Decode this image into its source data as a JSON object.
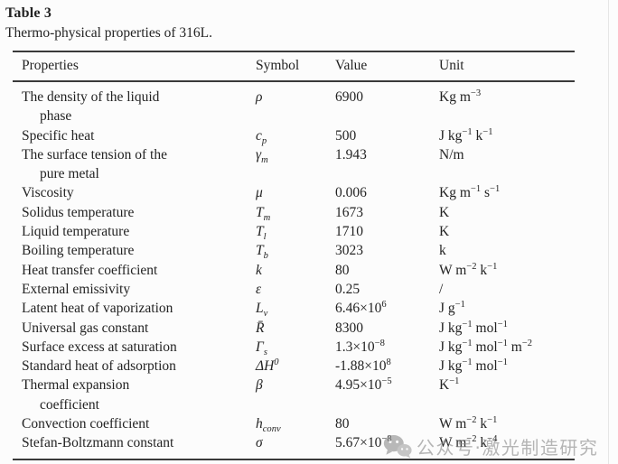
{
  "page": {
    "label": "Table 3",
    "caption": "Thermo-physical properties of 316L."
  },
  "table": {
    "columns": [
      "Properties",
      "Symbol",
      "Value",
      "Unit"
    ],
    "rows": [
      {
        "property_html": "The density of the liquid<br>phase",
        "symbol_html": "ρ",
        "value_html": "6900",
        "unit_html": "Kg m<sup>−3</sup>"
      },
      {
        "property_html": "Specific heat",
        "symbol_html": "c<sub>p</sub>",
        "value_html": "500",
        "unit_html": "J kg<sup>−1</sup> k<sup>−1</sup>"
      },
      {
        "property_html": "The surface tension of the<br>pure metal",
        "symbol_html": "γ<sub>m</sub>",
        "value_html": "1.943",
        "unit_html": "N/m"
      },
      {
        "property_html": "Viscosity",
        "symbol_html": "μ",
        "value_html": "0.006",
        "unit_html": "Kg m<sup>−1</sup> s<sup>−1</sup>"
      },
      {
        "property_html": "Solidus temperature",
        "symbol_html": "T<sub>m</sub>",
        "value_html": "1673",
        "unit_html": "K"
      },
      {
        "property_html": "Liquid temperature",
        "symbol_html": "T<sub>l</sub>",
        "value_html": "1710",
        "unit_html": "K"
      },
      {
        "property_html": "Boiling temperature",
        "symbol_html": "T<sub>b</sub>",
        "value_html": "3023",
        "unit_html": "k"
      },
      {
        "property_html": "Heat transfer coefficient",
        "symbol_html": "k",
        "value_html": "80",
        "unit_html": "W m<sup>−2</sup> k<sup>−1</sup>"
      },
      {
        "property_html": "External emissivity",
        "symbol_html": "ε",
        "value_html": "0.25",
        "unit_html": "/"
      },
      {
        "property_html": "Latent heat of vaporization",
        "symbol_html": "L<sub>v</sub>",
        "value_html": "6.46×10<sup>6</sup>",
        "unit_html": "J g<sup>−1</sup>"
      },
      {
        "property_html": "Universal gas constant",
        "symbol_html": "R̄",
        "value_html": "8300",
        "unit_html": "J kg<sup>−1</sup> mol<sup>−1</sup>"
      },
      {
        "property_html": "Surface excess at saturation",
        "symbol_html": "Γ<sub>s</sub>",
        "value_html": "1.3×10<sup>−8</sup>",
        "unit_html": "J kg<sup>−1</sup> mol<sup>−1</sup> m<sup>−2</sup>"
      },
      {
        "property_html": "Standard heat of adsorption",
        "symbol_html": "ΔH<sup>0</sup>",
        "value_html": "-1.88×10<sup>8</sup>",
        "unit_html": "J kg<sup>−1</sup> mol<sup>−1</sup>"
      },
      {
        "property_html": "Thermal expansion<br>coefficient",
        "symbol_html": "β",
        "value_html": "4.95×10<sup>−5</sup>",
        "unit_html": "K<sup>−1</sup>"
      },
      {
        "property_html": "Convection coefficient",
        "symbol_html": "h<sub>conv</sub>",
        "value_html": "80",
        "unit_html": "W m<sup>−2</sup> k<sup>−1</sup>"
      },
      {
        "property_html": "Stefan-Boltzmann constant",
        "symbol_html": "σ",
        "value_html": "5.67×10<sup>−8</sup>",
        "unit_html": "W m<sup>−2</sup> k<sup>−4</sup>"
      }
    ]
  },
  "watermark": {
    "icon": "wechat-icon",
    "text": "公众号·激光制造研究"
  },
  "colors": {
    "text": "#232323",
    "rule": "#3a3a3a",
    "background": "#fcfcfc",
    "watermark": "#8a8a8a"
  }
}
